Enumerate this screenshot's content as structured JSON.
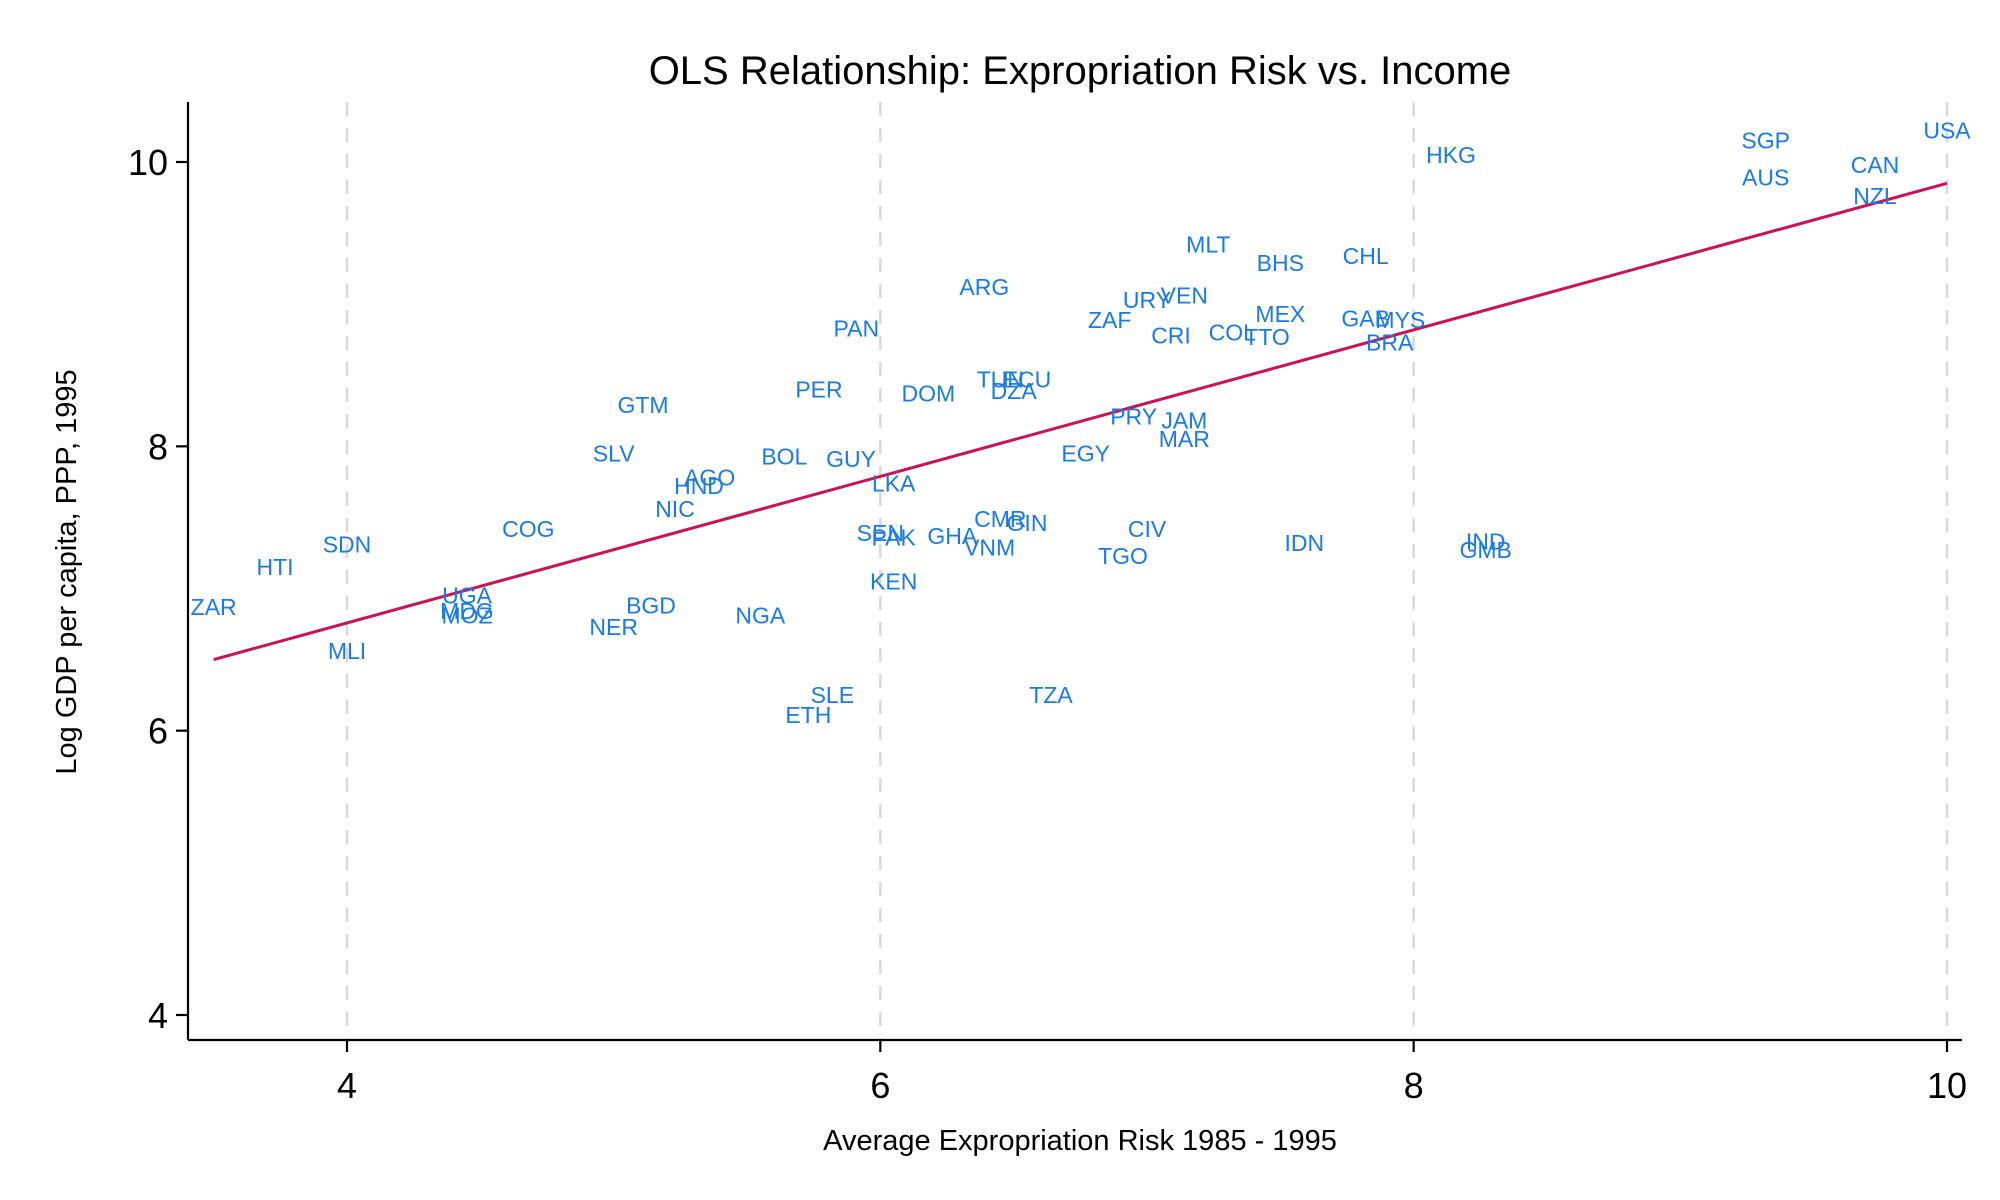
{
  "chart_data": {
    "type": "scatter",
    "title": "OLS Relationship: Expropriation Risk vs. Income",
    "xlabel": "Average Expropriation Risk 1985 - 1995",
    "ylabel": "Log GDP per capita, PPP, 1995",
    "xlim": [
      3.4,
      10.05
    ],
    "ylim": [
      3.8,
      10.4
    ],
    "xticks": [
      4,
      6,
      8,
      10
    ],
    "yticks": [
      4,
      6,
      8,
      10
    ],
    "xtick_labels": [
      "4",
      "6",
      "8",
      "10"
    ],
    "ytick_labels": [
      "4",
      "6",
      "8",
      "10"
    ],
    "grid": "vertical dashed",
    "label_color": "#1a7ae8",
    "fit_color": "#cc1155",
    "fit_line": {
      "x": [
        3.5,
        10.0
      ],
      "y": [
        6.5,
        9.85
      ]
    },
    "points": [
      {
        "label": "ZAR",
        "x": 3.5,
        "y": 6.87
      },
      {
        "label": "HTI",
        "x": 3.73,
        "y": 7.15
      },
      {
        "label": "SDN",
        "x": 4.0,
        "y": 7.31
      },
      {
        "label": "MLI",
        "x": 4.0,
        "y": 6.56
      },
      {
        "label": "UGA",
        "x": 4.45,
        "y": 6.95
      },
      {
        "label": "MDG",
        "x": 4.45,
        "y": 6.84
      },
      {
        "label": "MOZ",
        "x": 4.45,
        "y": 6.81
      },
      {
        "label": "COG",
        "x": 4.68,
        "y": 7.42
      },
      {
        "label": "SLV",
        "x": 5.0,
        "y": 7.95
      },
      {
        "label": "NER",
        "x": 5.0,
        "y": 6.73
      },
      {
        "label": "GTM",
        "x": 5.11,
        "y": 8.29
      },
      {
        "label": "BGD",
        "x": 5.14,
        "y": 6.88
      },
      {
        "label": "NIC",
        "x": 5.23,
        "y": 7.56
      },
      {
        "label": "HND",
        "x": 5.32,
        "y": 7.72
      },
      {
        "label": "AGO",
        "x": 5.36,
        "y": 7.78
      },
      {
        "label": "NGA",
        "x": 5.55,
        "y": 6.81
      },
      {
        "label": "BOL",
        "x": 5.64,
        "y": 7.93
      },
      {
        "label": "PER",
        "x": 5.77,
        "y": 8.4
      },
      {
        "label": "ETH",
        "x": 5.73,
        "y": 6.11
      },
      {
        "label": "SLE",
        "x": 5.82,
        "y": 6.25
      },
      {
        "label": "GUY",
        "x": 5.89,
        "y": 7.91
      },
      {
        "label": "PAN",
        "x": 5.91,
        "y": 8.83
      },
      {
        "label": "SEN",
        "x": 6.0,
        "y": 7.39
      },
      {
        "label": "PAK",
        "x": 6.05,
        "y": 7.36
      },
      {
        "label": "LKA",
        "x": 6.05,
        "y": 7.74
      },
      {
        "label": "KEN",
        "x": 6.05,
        "y": 7.05
      },
      {
        "label": "DOM",
        "x": 6.18,
        "y": 8.37
      },
      {
        "label": "GHA",
        "x": 6.27,
        "y": 7.37
      },
      {
        "label": "ARG",
        "x": 6.39,
        "y": 9.12
      },
      {
        "label": "VNM",
        "x": 6.41,
        "y": 7.29
      },
      {
        "label": "CMR",
        "x": 6.45,
        "y": 7.49
      },
      {
        "label": "TUN",
        "x": 6.45,
        "y": 8.47
      },
      {
        "label": "ECU",
        "x": 6.55,
        "y": 8.47
      },
      {
        "label": "DZA",
        "x": 6.5,
        "y": 8.39
      },
      {
        "label": "GIN",
        "x": 6.55,
        "y": 7.46
      },
      {
        "label": "TZA",
        "x": 6.64,
        "y": 6.25
      },
      {
        "label": "EGY",
        "x": 6.77,
        "y": 7.95
      },
      {
        "label": "ZAF",
        "x": 6.86,
        "y": 8.89
      },
      {
        "label": "PRY",
        "x": 6.95,
        "y": 8.21
      },
      {
        "label": "TGO",
        "x": 6.91,
        "y": 7.23
      },
      {
        "label": "CIV",
        "x": 7.0,
        "y": 7.42
      },
      {
        "label": "URY",
        "x": 7.0,
        "y": 9.03
      },
      {
        "label": "JAM",
        "x": 7.14,
        "y": 8.18
      },
      {
        "label": "CRI",
        "x": 7.09,
        "y": 8.78
      },
      {
        "label": "VEN",
        "x": 7.14,
        "y": 9.06
      },
      {
        "label": "MAR",
        "x": 7.14,
        "y": 8.05
      },
      {
        "label": "MLT",
        "x": 7.23,
        "y": 9.42
      },
      {
        "label": "COL",
        "x": 7.32,
        "y": 8.8
      },
      {
        "label": "MEX",
        "x": 7.5,
        "y": 8.93
      },
      {
        "label": "TTO",
        "x": 7.45,
        "y": 8.77
      },
      {
        "label": "BHS",
        "x": 7.5,
        "y": 9.29
      },
      {
        "label": "IDN",
        "x": 7.59,
        "y": 7.32
      },
      {
        "label": "CHL",
        "x": 7.82,
        "y": 9.34
      },
      {
        "label": "GAB",
        "x": 7.82,
        "y": 8.9
      },
      {
        "label": "MYS",
        "x": 7.95,
        "y": 8.89
      },
      {
        "label": "BRA",
        "x": 7.91,
        "y": 8.73
      },
      {
        "label": "HKG",
        "x": 8.14,
        "y": 10.05
      },
      {
        "label": "IND",
        "x": 8.27,
        "y": 7.33
      },
      {
        "label": "GMB",
        "x": 8.27,
        "y": 7.27
      },
      {
        "label": "SGP",
        "x": 9.32,
        "y": 10.15
      },
      {
        "label": "AUS",
        "x": 9.32,
        "y": 9.89
      },
      {
        "label": "CAN",
        "x": 9.73,
        "y": 9.98
      },
      {
        "label": "NZL",
        "x": 9.73,
        "y": 9.76
      },
      {
        "label": "USA",
        "x": 10.0,
        "y": 10.22
      }
    ]
  }
}
